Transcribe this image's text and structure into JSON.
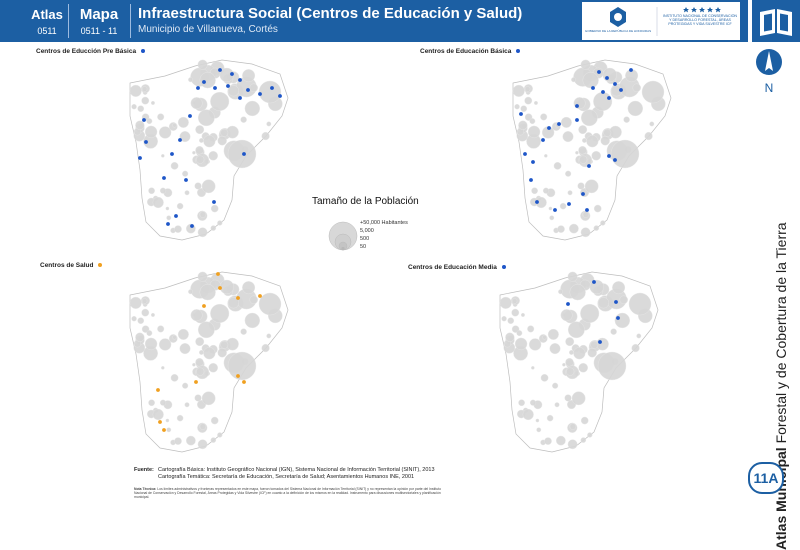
{
  "header": {
    "atlas_label": "Atlas",
    "atlas_code": "0511",
    "mapa_label": "Mapa",
    "mapa_code": "0511 - 11",
    "title": "Infraestructura Social (Centros de Educación y Salud)",
    "subtitle": "Municipio de Villanueva, Cortés",
    "logo_left_text": "GOBIERNO DE LA REPÚBLICA DE HONDURAS",
    "logo_right_text": "INSTITUTO NACIONAL DE CONSERVACIÓN Y DESARROLLO FORESTAL, ÁREAS PROTEGIDAS Y VIDA SILVESTRE ICF"
  },
  "maps": [
    {
      "label": "Centros de Educción Pre Básica",
      "dot_color": "#1e56c8"
    },
    {
      "label": "Centros de Educación Básica",
      "dot_color": "#1e56c8"
    },
    {
      "label": "Centros de Salud",
      "dot_color": "#f0a020"
    },
    {
      "label": "Centros de Educación Media",
      "dot_color": "#1e56c8"
    }
  ],
  "legend": {
    "title": "Tamaño de la Población",
    "items": [
      "+50,000 Habitantes",
      "5,000",
      "500",
      "50"
    ]
  },
  "side": {
    "north_label": "N",
    "atlas_bold": "Atlas Municipal",
    "atlas_rest": " Forestal y de Cobertura de la Tierra",
    "badge": "11A"
  },
  "source": {
    "label": "Fuente:",
    "line1": "Cartografía Básica: Instituto Geográfico Nacional (IGN), Sistema Nacional de Información Territorial (SINIT), 2013",
    "line2": "Cartografía Temática: Secretaría de Educación, Secretaría de Salud; Asentamientos Humanos INE, 2001",
    "note_label": "Nota Técnica:",
    "note_text": "Los límites administrativos y fronteras representados en este mapa, fueron tomados del Sistema Nacional de Información Territorial (SINIT) y no representan la opinión por parte del Instituto Nacional de Conservación y Desarrollo Forestal, Áreas Protegidas y Vida Silvestre (ICF) en cuanto a la definición de los mismos en la realidad. Instrumento para discusiones multisectoriales y planificación municipal."
  }
}
